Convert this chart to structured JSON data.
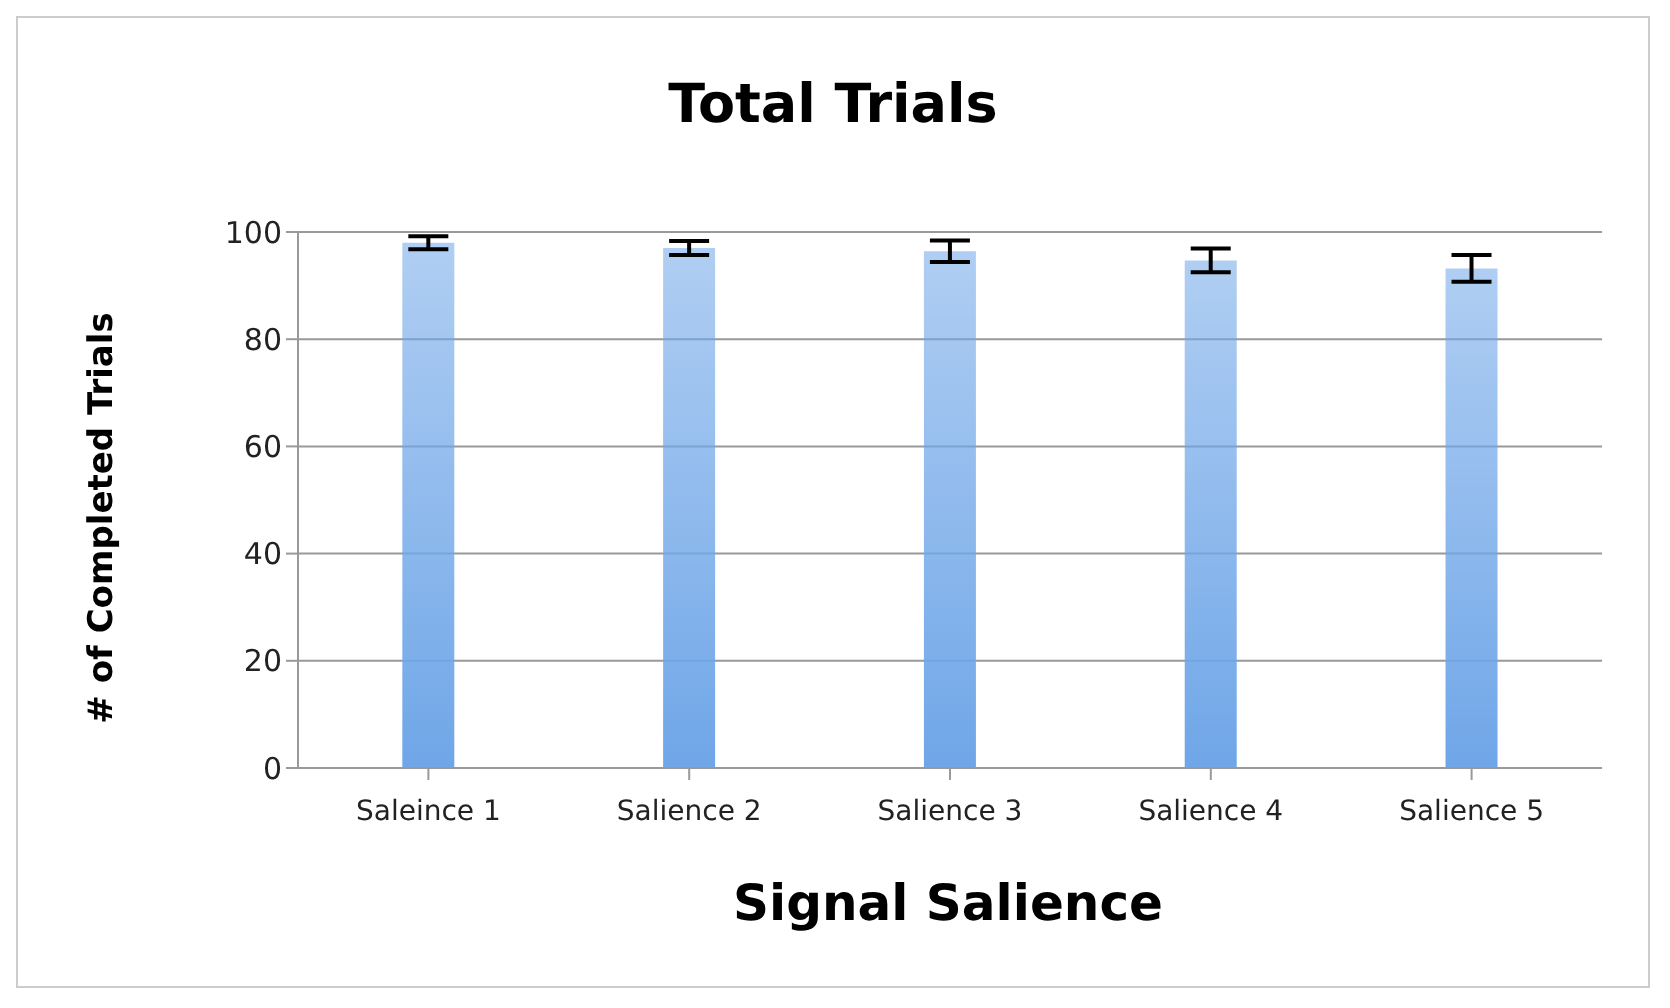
{
  "chart_data": {
    "type": "bar",
    "title": "Total Trials",
    "xlabel": "Signal Salience",
    "ylabel": "# of Completed Trials",
    "categories": [
      "Saleince 1",
      "Salience 2",
      "Salience 3",
      "Salience 4",
      "Salience 5"
    ],
    "values": [
      98,
      97,
      96.4,
      94.7,
      93.2
    ],
    "errors": [
      1.2,
      1.3,
      2,
      2.2,
      2.5
    ],
    "color": "#6fa6e8",
    "ylim": [
      0,
      100
    ],
    "yticks": [
      0,
      20,
      40,
      60,
      80,
      100
    ],
    "grid": "y"
  }
}
